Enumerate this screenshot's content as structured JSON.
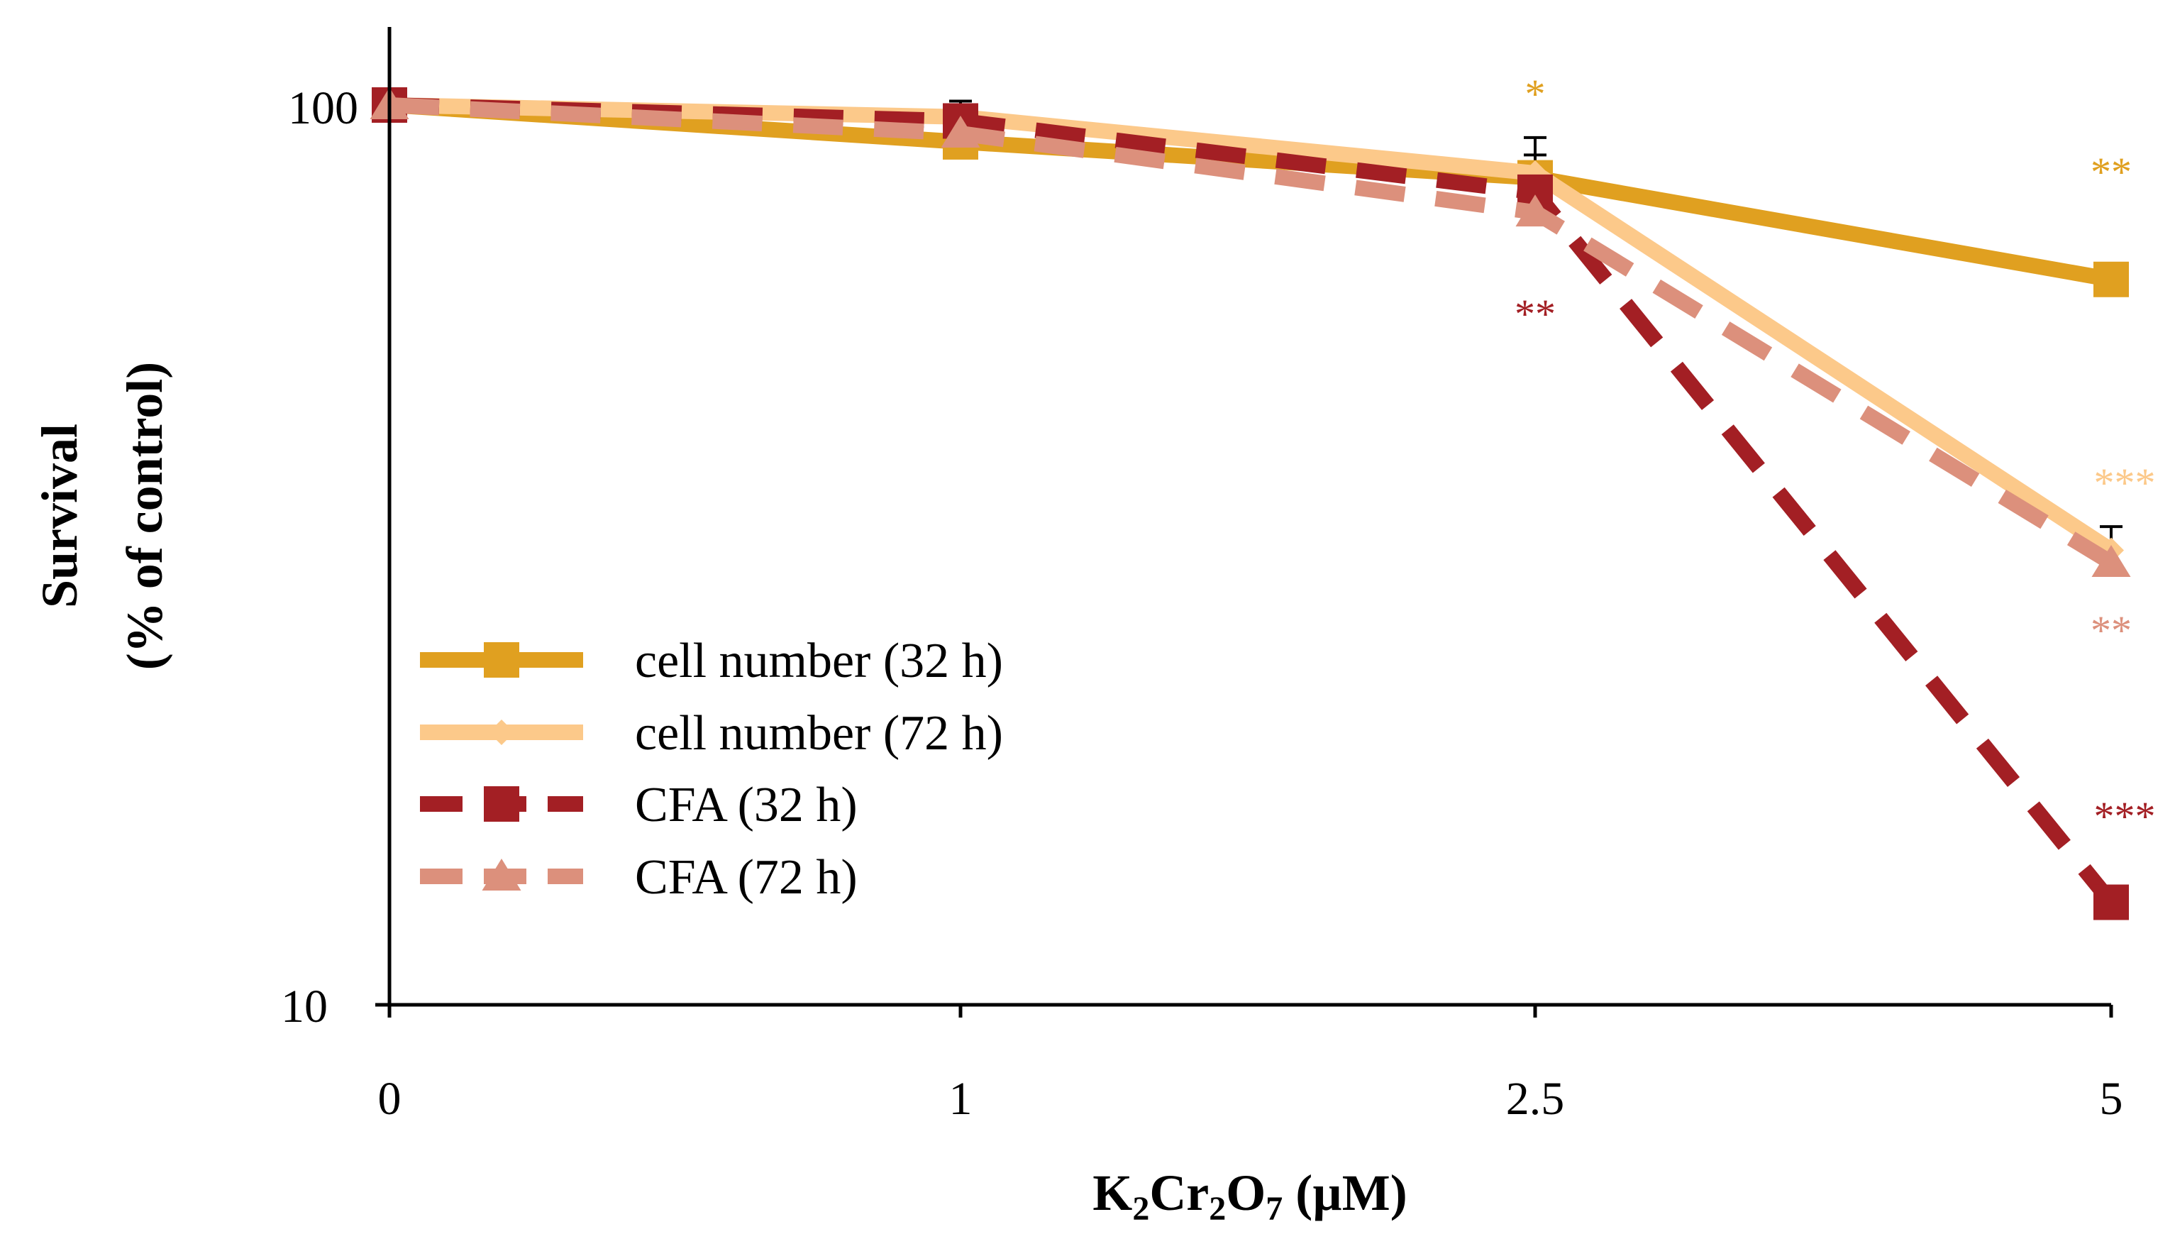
{
  "chart_data": {
    "type": "line",
    "title": "",
    "x_categories": [
      "0",
      "1",
      "2.5",
      "5"
    ],
    "y_axis": {
      "scale": "log",
      "range": [
        10,
        130
      ],
      "tick_values": [
        10,
        100
      ],
      "tick_labels": [
        "10",
        "100"
      ],
      "title_line1": "Survival",
      "title_line2": "(% of control)"
    },
    "x_axis": {
      "title_main": "K",
      "title_sub1": "2",
      "title_mid": "Cr",
      "title_sub2": "2",
      "title_o": "O",
      "title_sub3": "7",
      "title_unit": " (µM)"
    },
    "grid": false,
    "legend": {
      "position": "bottom-left"
    },
    "series": [
      {
        "name": "cell number (32 h)",
        "color": "#e0a020",
        "dashed": false,
        "marker": "square",
        "values": [
          100,
          91,
          83,
          64
        ],
        "errors": [
          0,
          0,
          5,
          0
        ],
        "sig": [
          "",
          "",
          "*",
          "**"
        ]
      },
      {
        "name": "cell number (72 h)",
        "color": "#fcc98a",
        "dashed": false,
        "marker": "diamond",
        "values": [
          100,
          97,
          84,
          32
        ],
        "errors": [
          0,
          0,
          8,
          2
        ],
        "sig": [
          "",
          "",
          "",
          "***"
        ]
      },
      {
        "name": "CFA (32 h)",
        "color": "#a31f24",
        "dashed": true,
        "marker": "square",
        "values": [
          100,
          96,
          80,
          13
        ],
        "errors": [
          0,
          5,
          0,
          0
        ],
        "sig": [
          "",
          "",
          "**",
          "***"
        ]
      },
      {
        "name": "CFA (72 h)",
        "color": "#dc907c",
        "dashed": true,
        "marker": "triangle",
        "values": [
          100,
          93,
          76,
          31
        ],
        "errors": [
          0,
          0,
          0,
          0
        ],
        "sig": [
          "",
          "",
          "",
          "**"
        ]
      }
    ]
  }
}
